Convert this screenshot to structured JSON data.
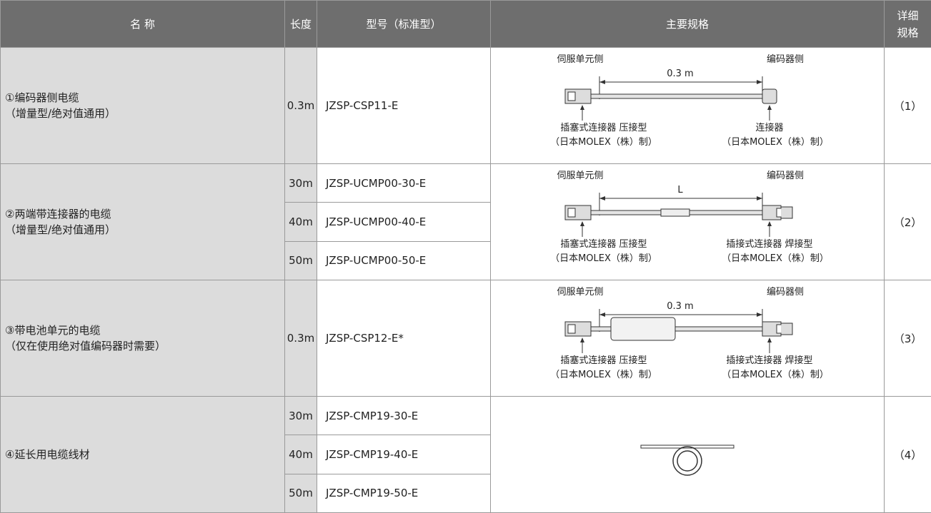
{
  "header": [
    "名 称",
    "长度",
    "型号（标准型）",
    "主要规格",
    "详细规格"
  ],
  "rows": [
    {
      "name": "①编码器侧电缆",
      "note": "（增量型/绝对值通用）",
      "items": [
        {
          "length": "0.3m",
          "model": "JZSP-CSP11-E"
        }
      ],
      "diagram": {
        "left_side": "伺服单元侧",
        "length": "0.3 m",
        "right_side": "编码器侧",
        "left_connector": "插塞式连接器 压接型",
        "left_maker": "（日本MOLEX（株）制）",
        "right_connector": "连接器",
        "right_maker": "（日本MOLEX（株）制）"
      },
      "detail": "（1）"
    },
    {
      "name": "②两端带连接器的电缆",
      "note": "（增量型/绝对值通用）",
      "items": [
        {
          "length": "30m",
          "model": "JZSP-UCMP00-30-E"
        },
        {
          "length": "40m",
          "model": "JZSP-UCMP00-40-E"
        },
        {
          "length": "50m",
          "model": "JZSP-UCMP00-50-E"
        }
      ],
      "diagram": {
        "left_side": "伺服单元侧",
        "length": "L",
        "right_side": "编码器侧",
        "left_connector": "插塞式连接器 压接型",
        "left_maker": "（日本MOLEX（株）制）",
        "right_connector": "插接式连接器 焊接型",
        "right_maker": "（日本MOLEX（株）制）"
      },
      "detail": "（2）"
    },
    {
      "name": "③带电池单元的电缆",
      "note": "（仅在使用绝对值编码器时需要）",
      "items": [
        {
          "length": "0.3m",
          "model": "JZSP-CSP12-E*"
        }
      ],
      "diagram": {
        "left_side": "伺服单元侧",
        "length": "0.3 m",
        "right_side": "编码器侧",
        "left_connector": "插塞式连接器 压接型",
        "left_maker": "（日本MOLEX（株）制）",
        "right_connector": "插接式连接器 焊接型",
        "right_maker": "（日本MOLEX（株）制）"
      },
      "detail": "（3）"
    },
    {
      "name": "④延长用电缆线材",
      "items": [
        {
          "length": "30m",
          "model": "JZSP-CMP19-30-E"
        },
        {
          "length": "40m",
          "model": "JZSP-CMP19-40-E"
        },
        {
          "length": "50m",
          "model": "JZSP-CMP19-50-E"
        }
      ],
      "detail": "（4）"
    }
  ]
}
